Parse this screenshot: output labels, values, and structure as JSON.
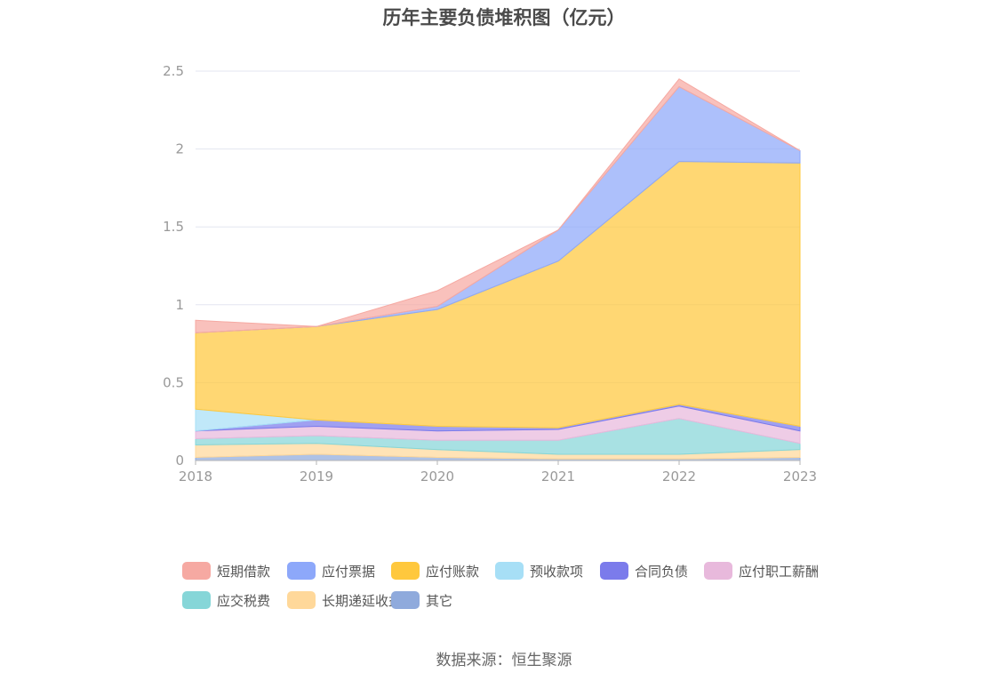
{
  "chart_data": {
    "type": "area",
    "title": "历年主要负债堆积图（亿元）",
    "stacked": true,
    "categories": [
      "2018",
      "2019",
      "2020",
      "2021",
      "2022",
      "2023"
    ],
    "ylim": [
      0,
      2.5
    ],
    "yticks": [
      "0",
      "0.5",
      "1",
      "1.5",
      "2",
      "2.5"
    ],
    "grid": true,
    "legend_position": "bottom",
    "series": [
      {
        "name": "其它",
        "color": "#8FAADC",
        "values": [
          0.02,
          0.04,
          0.02,
          0.01,
          0.01,
          0.02
        ]
      },
      {
        "name": "长期递延收益",
        "color": "#FFD89A",
        "values": [
          0.08,
          0.07,
          0.05,
          0.03,
          0.03,
          0.05
        ]
      },
      {
        "name": "应交税费",
        "color": "#86D6D8",
        "values": [
          0.04,
          0.05,
          0.06,
          0.09,
          0.23,
          0.04
        ]
      },
      {
        "name": "应付职工薪酬",
        "color": "#E8B9DC",
        "values": [
          0.05,
          0.06,
          0.06,
          0.07,
          0.08,
          0.08
        ]
      },
      {
        "name": "合同负债",
        "color": "#7B7BEB",
        "values": [
          0.0,
          0.04,
          0.03,
          0.01,
          0.01,
          0.03
        ]
      },
      {
        "name": "预收款项",
        "color": "#A7DFF6",
        "values": [
          0.14,
          0.0,
          0.0,
          0.0,
          0.0,
          0.0
        ]
      },
      {
        "name": "应付账款",
        "color": "#FFC83D",
        "values": [
          0.49,
          0.6,
          0.75,
          1.07,
          1.56,
          1.69
        ]
      },
      {
        "name": "应付票据",
        "color": "#8DA8FA",
        "values": [
          0.0,
          0.0,
          0.02,
          0.2,
          0.48,
          0.08
        ]
      },
      {
        "name": "短期借款",
        "color": "#F6A9A2",
        "values": [
          0.08,
          0.0,
          0.1,
          0.0,
          0.05,
          0.0
        ]
      }
    ],
    "legend": [
      "短期借款",
      "应付票据",
      "应付账款",
      "预收款项",
      "合同负债",
      "应付职工薪酬",
      "应交税费",
      "长期递延收益",
      "其它"
    ]
  },
  "source": "数据来源：恒生聚源"
}
